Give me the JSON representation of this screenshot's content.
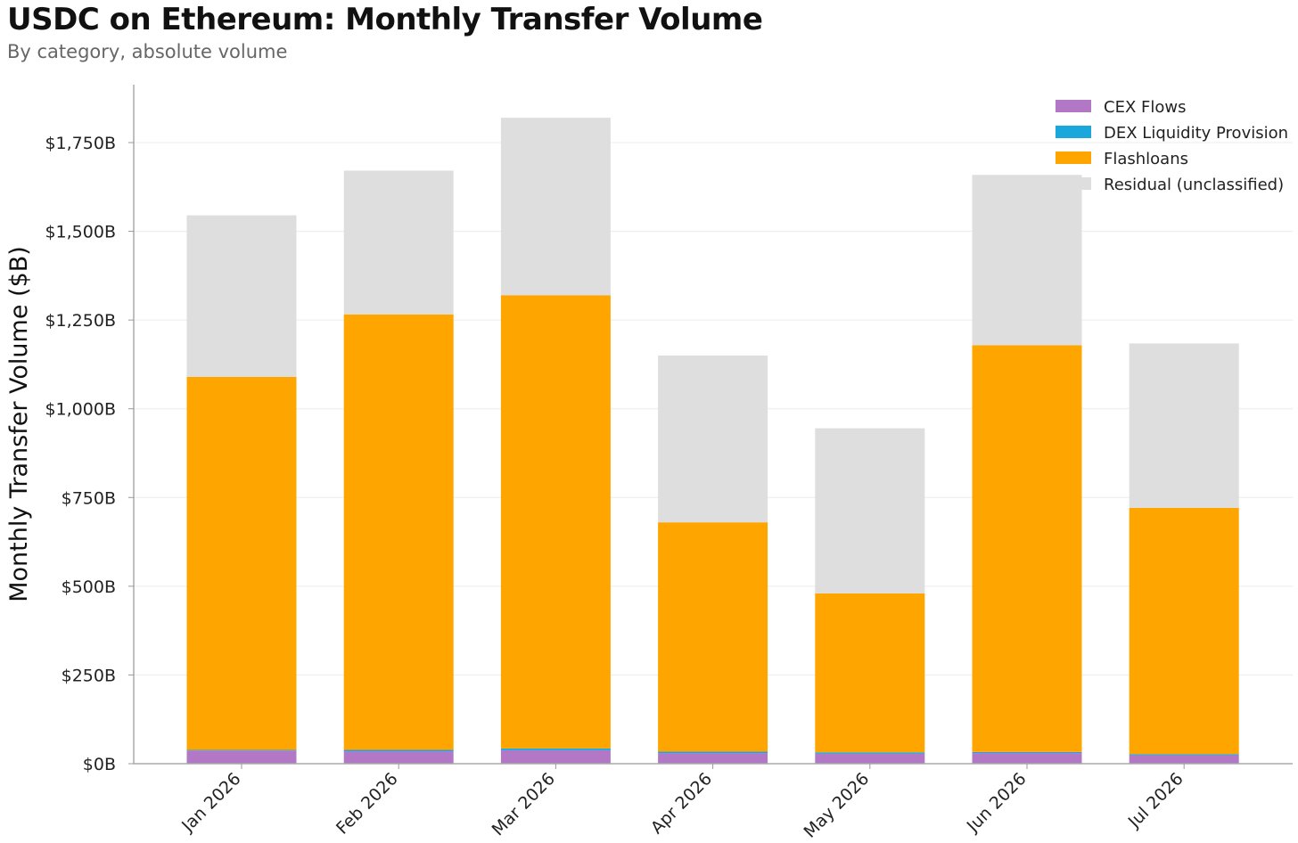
{
  "title": "USDC on Ethereum: Monthly Transfer Volume",
  "subtitle": "By category, absolute volume",
  "chart_data": {
    "type": "bar",
    "stacked": true,
    "categories": [
      "Jan 2026",
      "Feb 2026",
      "Mar 2026",
      "Apr 2026",
      "May 2026",
      "Jun 2026",
      "Jul 2026"
    ],
    "series": [
      {
        "name": "CEX Flows",
        "color": "#b278c6",
        "values": [
          37,
          35,
          38,
          30,
          28,
          30,
          24
        ]
      },
      {
        "name": "DEX Liquidity Provision",
        "color": "#1aa7dc",
        "values": [
          2,
          4,
          5,
          4,
          4,
          3,
          3
        ]
      },
      {
        "name": "Flashloans",
        "color": "#ffa500",
        "values": [
          1051,
          1227,
          1277,
          646,
          448,
          1146,
          694
        ]
      },
      {
        "name": "Residual (unclassified)",
        "color": "#dedede",
        "values": [
          455,
          405,
          500,
          470,
          465,
          480,
          463
        ]
      }
    ],
    "xlabel": "",
    "ylabel": "Monthly Transfer Volume ($B)",
    "ylim": [
      0,
      1750
    ],
    "yticks": [
      0,
      250,
      500,
      750,
      1000,
      1250,
      1500,
      1750
    ],
    "ytick_labels": [
      "$0B",
      "$250B",
      "$500B",
      "$750B",
      "$1,000B",
      "$1,250B",
      "$1,500B",
      "$1,750B"
    ],
    "grid": true,
    "legend_position": "top-right"
  }
}
